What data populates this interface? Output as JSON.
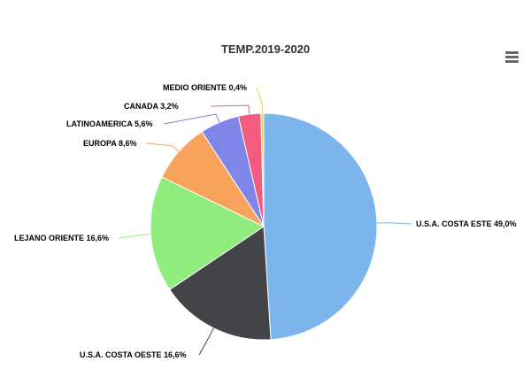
{
  "chart_data": {
    "type": "pie",
    "title": "TEMP.2019-2020",
    "slices": [
      {
        "name": "U.S.A. COSTA ESTE",
        "value": 49.0,
        "label": "U.S.A. COSTA ESTE 49,0%",
        "color": "#7cb5ec"
      },
      {
        "name": "U.S.A. COSTA OESTE",
        "value": 16.6,
        "label": "U.S.A. COSTA OESTE 16,6%",
        "color": "#434348"
      },
      {
        "name": "LEJANO ORIENTE",
        "value": 16.6,
        "label": "LEJANO ORIENTE 16,6%",
        "color": "#90ed7d"
      },
      {
        "name": "EUROPA",
        "value": 8.6,
        "label": "EUROPA 8,6%",
        "color": "#f7a35c"
      },
      {
        "name": "LATINOAMERICA",
        "value": 5.6,
        "label": "LATINOAMERICA 5,6%",
        "color": "#8085e9"
      },
      {
        "name": "CANADA",
        "value": 3.2,
        "label": "CANADA 3,2%",
        "color": "#f15c80"
      },
      {
        "name": "MEDIO ORIENTE",
        "value": 0.4,
        "label": "MEDIO ORIENTE 0,4%",
        "color": "#e4d354"
      }
    ]
  },
  "toolbar": {
    "menu_icon": "hamburger-menu-icon"
  }
}
